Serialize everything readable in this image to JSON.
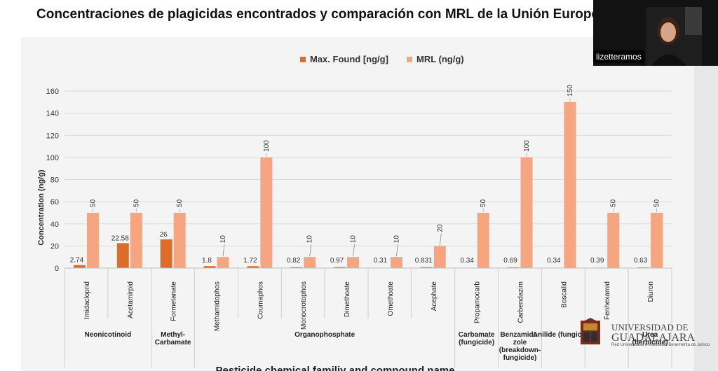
{
  "slide_title": "Concentraciones de plagicidas encontrados y comparación con MRL de la Unión Europea",
  "participant_name": "lizetteramos",
  "colors": {
    "max_found": "#dd6d2a",
    "mrl": "#f6a581",
    "panel": "#f4f4f4",
    "grid": "#d9d9d9"
  },
  "logo": {
    "line1": "UNIVERSIDAD DE",
    "line2": "GUADALAJARA",
    "line3": "Red Universitaria e Institución Benemérita de Jalisco"
  },
  "chart_data": {
    "type": "bar",
    "ylabel": "Concentration (ng/g)",
    "xlabel": "Pesticide chemical familiy and compound name",
    "ylim": [
      0,
      160
    ],
    "yticks": [
      0,
      20,
      40,
      60,
      80,
      100,
      120,
      140,
      160
    ],
    "grid": true,
    "legend_position": "top",
    "categories": [
      "Imidacloprid",
      "Acetamirpid",
      "Formetanate",
      "Methamidophos",
      "Coumaphos",
      "Monocrotophos",
      "Dimethoate",
      "Omethoate",
      "Acephate",
      "Propamocarb",
      "Carbendazim",
      "Boscalid",
      "Fenhexamid",
      "Diuron"
    ],
    "series": [
      {
        "name": "Max. Found [ng/g]",
        "values": [
          2.74,
          22.58,
          26,
          1.8,
          1.72,
          0.82,
          0.97,
          0.31,
          0.831,
          0.34,
          0.69,
          0.34,
          0.39,
          0.63
        ],
        "labels": [
          "2.74",
          "22.58",
          "26",
          "1.8",
          "1.72",
          "0.82",
          "0.97",
          "0.31",
          "0.831",
          "0.34",
          "0.69",
          "0.34",
          "0.39",
          "0.63"
        ]
      },
      {
        "name": "MRL (ng/g)",
        "values": [
          50,
          50,
          50,
          10,
          100,
          10,
          10,
          10,
          20,
          50,
          100,
          150,
          50,
          50
        ],
        "labels": [
          "50",
          "50",
          "50",
          "10",
          "100",
          "10",
          "10",
          "10",
          "20",
          "50",
          "100",
          "150",
          "50",
          "50"
        ]
      }
    ],
    "groups": [
      {
        "lines": [
          "Neonicotinoid"
        ],
        "span": [
          0,
          1
        ]
      },
      {
        "lines": [
          "Methyl-",
          "Carbamate"
        ],
        "span": [
          2,
          2
        ]
      },
      {
        "lines": [
          "Organophosphate"
        ],
        "span": [
          3,
          8
        ]
      },
      {
        "lines": [
          "Carbamate",
          "(fungicide)"
        ],
        "span": [
          9,
          9
        ]
      },
      {
        "lines": [
          "Benzamida-",
          "zole",
          "(breakdown-",
          "fungicide)"
        ],
        "span": [
          10,
          10
        ]
      },
      {
        "lines": [
          "Anilide (fungicide)"
        ],
        "span": [
          11,
          11
        ]
      },
      {
        "lines": [
          "Urea",
          "(herbicide)"
        ],
        "span": [
          13,
          13
        ]
      }
    ]
  }
}
